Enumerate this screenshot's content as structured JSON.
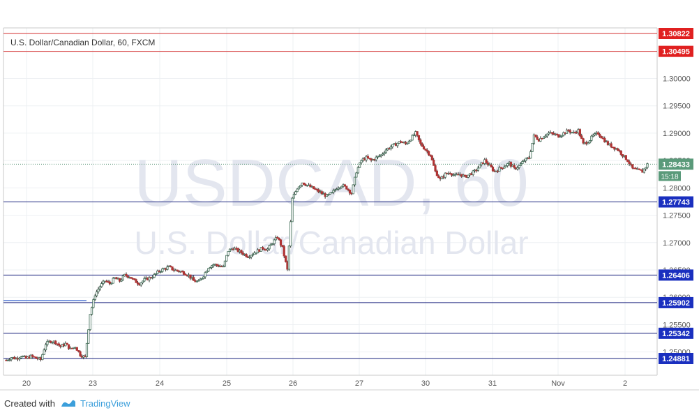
{
  "chart_data": {
    "type": "candlestick",
    "title": "U.S. Dollar/Canadian Dollar, 60, FXCM",
    "watermark_main": "USDCAD, 60",
    "watermark_sub": "U.S. Dollar/Canadian Dollar",
    "ylim": [
      1.2465,
      1.3095
    ],
    "y_ticks": [
      1.25,
      1.255,
      1.26,
      1.265,
      1.27,
      1.275,
      1.28,
      1.285,
      1.29,
      1.295,
      1.3
    ],
    "y_tick_labels": [
      "1.25000",
      "1.25500",
      "1.26000",
      "1.26500",
      "1.27000",
      "1.27500",
      "1.28000",
      "1.28500",
      "1.29000",
      "1.29500",
      "1.30000"
    ],
    "x_labels": [
      "20",
      "23",
      "24",
      "25",
      "26",
      "27",
      "30",
      "31",
      "Nov",
      "2"
    ],
    "hlines_red": [
      {
        "value": 1.30822,
        "label": "1.30822"
      },
      {
        "value": 1.30495,
        "label": "1.30495"
      }
    ],
    "hlines_blue": [
      {
        "value": 1.27743,
        "label": "1.27743"
      },
      {
        "value": 1.26406,
        "label": "1.26406"
      },
      {
        "value": 1.25902,
        "label": "1.25902"
      },
      {
        "value": 1.25342,
        "label": "1.25342"
      },
      {
        "value": 1.24881,
        "label": "1.24881"
      }
    ],
    "short_line": {
      "value": 1.2594
    },
    "current_price": {
      "value": 1.28433,
      "label": "1.28433",
      "countdown": "15:18"
    },
    "price_path": [
      1.2485,
      1.249,
      1.2488,
      1.2493,
      1.2488,
      1.2492,
      1.2489,
      1.2486,
      1.2515,
      1.252,
      1.2518,
      1.251,
      1.2515,
      1.2505,
      1.251,
      1.2495,
      1.249,
      1.257,
      1.2605,
      1.262,
      1.263,
      1.2625,
      1.2635,
      1.263,
      1.264,
      1.2638,
      1.263,
      1.2625,
      1.2632,
      1.2635,
      1.264,
      1.2648,
      1.2652,
      1.2655,
      1.265,
      1.2648,
      1.2645,
      1.264,
      1.263,
      1.2628,
      1.264,
      1.2655,
      1.266,
      1.2658,
      1.2655,
      1.2685,
      1.269,
      1.2685,
      1.268,
      1.2675,
      1.268,
      1.2685,
      1.269,
      1.2688,
      1.27,
      1.271,
      1.269,
      1.265,
      1.278,
      1.28,
      1.281,
      1.2805,
      1.28,
      1.2795,
      1.279,
      1.2785,
      1.279,
      1.28,
      1.2805,
      1.28,
      1.279,
      1.283,
      1.285,
      1.2855,
      1.285,
      1.2855,
      1.286,
      1.287,
      1.2875,
      1.288,
      1.2885,
      1.288,
      1.289,
      1.29,
      1.288,
      1.287,
      1.286,
      1.283,
      1.2815,
      1.2825,
      1.2828,
      1.2822,
      1.2825,
      1.282,
      1.2825,
      1.283,
      1.284,
      1.285,
      1.284,
      1.283,
      1.2835,
      1.284,
      1.2845,
      1.2835,
      1.284,
      1.285,
      1.2855,
      1.2895,
      1.2888,
      1.2895,
      1.29,
      1.2898,
      1.2895,
      1.29,
      1.2905,
      1.29,
      1.2905,
      1.288,
      1.2885,
      1.2895,
      1.29,
      1.289,
      1.288,
      1.2875,
      1.287,
      1.286,
      1.285,
      1.2835,
      1.2832,
      1.283,
      1.2843
    ]
  },
  "footer": {
    "created_with": "Created with",
    "brand": "TradingView"
  }
}
